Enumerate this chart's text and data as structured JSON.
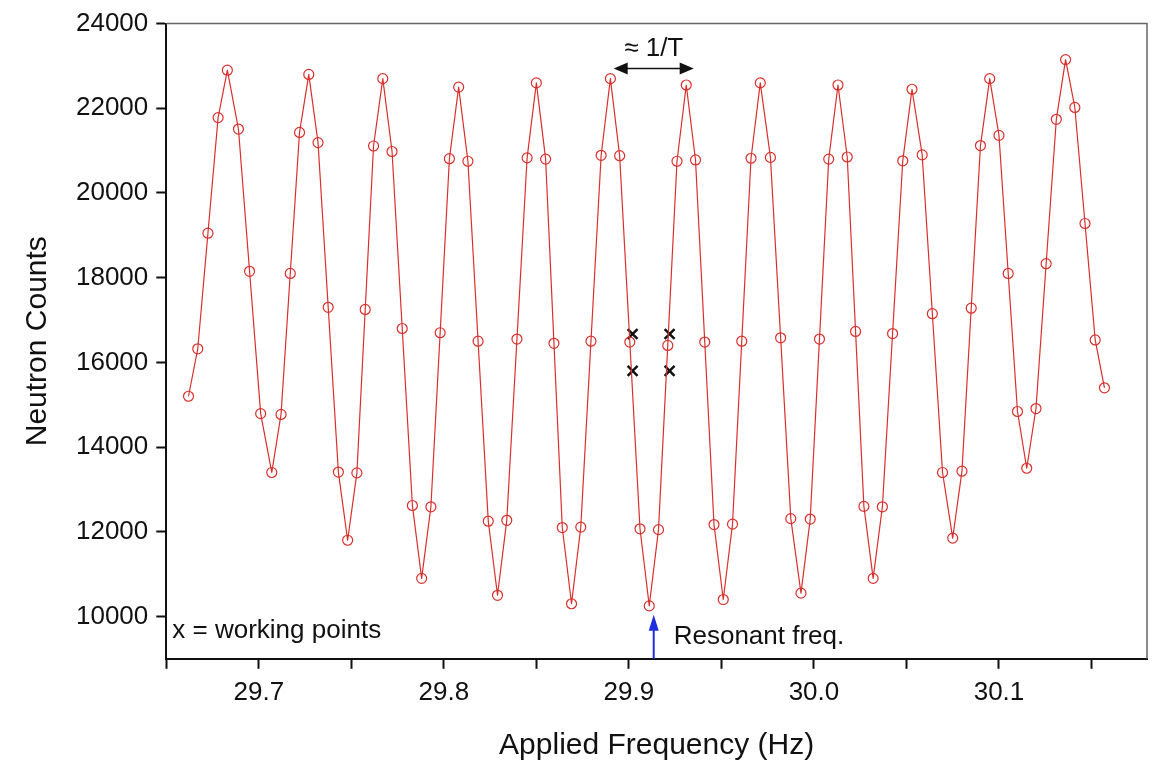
{
  "chart_data": {
    "type": "line",
    "xlabel": "Applied Frequency (Hz)",
    "ylabel": "Neutron Counts",
    "xlim": [
      29.65,
      30.18
    ],
    "ylim": [
      9000,
      24000
    ],
    "xticks": [
      {
        "value": 29.65,
        "label": null
      },
      29.7,
      {
        "value": 29.75,
        "label": null
      },
      29.8,
      {
        "value": 29.85,
        "label": null
      },
      29.9,
      {
        "value": 29.95,
        "label": null
      },
      {
        "value": 30.0,
        "label": "30.0"
      },
      {
        "value": 30.05,
        "label": null
      },
      30.1,
      {
        "value": 30.15,
        "label": null
      }
    ],
    "yticks": [
      10000,
      12000,
      14000,
      16000,
      18000,
      20000,
      22000,
      24000
    ],
    "grid": false,
    "legend": false,
    "marker": "circle",
    "line_style": "solid",
    "annotations": [
      "x = working points",
      "≈ 1/T",
      "Resonant freq."
    ],
    "series": [
      {
        "color": "#d9302c",
        "x": [
          29.662,
          29.667,
          29.6725,
          29.678,
          29.683,
          29.689,
          29.695,
          29.701,
          29.707,
          29.712,
          29.717,
          29.722,
          29.727,
          29.732,
          29.7375,
          29.743,
          29.748,
          29.753,
          29.7575,
          29.762,
          29.767,
          29.772,
          29.7775,
          29.783,
          29.788,
          29.793,
          29.798,
          29.803,
          29.808,
          29.813,
          29.8185,
          29.824,
          29.829,
          29.834,
          29.8395,
          29.845,
          29.85,
          29.855,
          29.8595,
          29.864,
          29.869,
          29.874,
          29.8795,
          29.885,
          29.89,
          29.895,
          29.9005,
          29.906,
          29.911,
          29.916,
          29.921,
          29.926,
          29.931,
          29.936,
          29.941,
          29.946,
          29.951,
          29.956,
          29.961,
          29.966,
          29.971,
          29.9765,
          29.982,
          29.9875,
          29.993,
          29.998,
          30.003,
          30.008,
          30.013,
          30.018,
          30.0225,
          30.027,
          30.032,
          30.037,
          30.0425,
          30.048,
          30.053,
          30.0585,
          30.064,
          30.0695,
          30.075,
          30.08,
          30.085,
          30.09,
          30.095,
          30.1,
          30.105,
          30.11,
          30.115,
          30.12,
          30.1255,
          30.131,
          30.136,
          30.141,
          30.1465,
          30.152,
          30.157
        ],
        "values": [
          15200,
          16320,
          19050,
          21780,
          22900,
          21510,
          18150,
          14790,
          13400,
          14770,
          18100,
          21430,
          22800,
          21190,
          17300,
          13410,
          11800,
          13390,
          17250,
          21110,
          22700,
          20980,
          16800,
          12620,
          10900,
          12590,
          16700,
          20810,
          22500,
          20750,
          16500,
          12250,
          10500,
          12270,
          16550,
          20830,
          22600,
          20800,
          16450,
          12100,
          10300,
          12110,
          16500,
          20890,
          22700,
          20880,
          16480,
          12070,
          10250,
          12050,
          16400,
          20750,
          22550,
          20780,
          16480,
          12170,
          10400,
          12180,
          16500,
          20820,
          22600,
          20840,
          16580,
          12310,
          10550,
          12300,
          16550,
          20800,
          22550,
          20850,
          16730,
          12600,
          10900,
          12590,
          16680,
          20760,
          22450,
          20900,
          17150,
          13400,
          11850,
          13430,
          17280,
          21120,
          22700,
          21360,
          18100,
          14840,
          13500,
          14910,
          18330,
          21740,
          23150,
          22020,
          19280,
          16530,
          15400
        ]
      },
      {
        "type": "scatter",
        "color": "#111111",
        "marker": "cross",
        "x": [
          29.902,
          29.902,
          29.922,
          29.922
        ],
        "values": [
          16670,
          15800,
          16670,
          15800
        ]
      }
    ]
  }
}
